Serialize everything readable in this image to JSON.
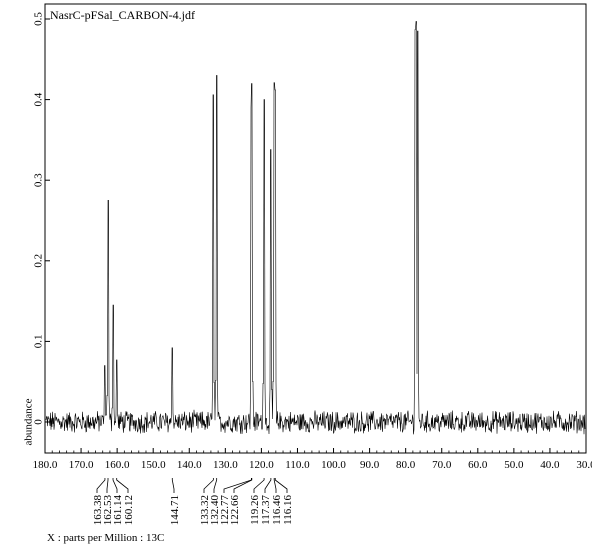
{
  "chart_data": {
    "type": "line",
    "title": "NasrC-pFSal_CARBON-4.jdf",
    "xlabel": "X : parts per Million : 13C",
    "ylabel": "abundance",
    "x_reversed": true,
    "xlim": [
      180.0,
      30.0
    ],
    "ylim": [
      -0.03,
      0.5
    ],
    "x_ticks": [
      180.0,
      170.0,
      160.0,
      150.0,
      140.0,
      130.0,
      120.0,
      110.0,
      100.0,
      90.0,
      80.0,
      70.0,
      60.0,
      50.0,
      40.0,
      30.0
    ],
    "x_tick_labels": [
      "180.0",
      "170.0",
      "160.0",
      "150.0",
      "140.0",
      "130.0",
      "120.0",
      "110.0",
      "100.0",
      "90.0",
      "80.0",
      "70.0",
      "60.0",
      "50.0",
      "40.0",
      "30.0"
    ],
    "y_ticks": [
      0,
      0.1,
      0.2,
      0.3,
      0.4,
      0.5
    ],
    "y_tick_labels": [
      "0",
      "0.1",
      "0.2",
      "0.3",
      "0.4",
      "0.5"
    ],
    "grid": false,
    "peaks": [
      {
        "x": 163.38,
        "y": 0.07
      },
      {
        "x": 162.53,
        "y": 0.275
      },
      {
        "x": 161.14,
        "y": 0.145
      },
      {
        "x": 160.12,
        "y": 0.077
      },
      {
        "x": 144.71,
        "y": 0.092
      },
      {
        "x": 133.32,
        "y": 0.406
      },
      {
        "x": 132.4,
        "y": 0.43
      },
      {
        "x": 122.77,
        "y": 0.39
      },
      {
        "x": 122.66,
        "y": 0.42
      },
      {
        "x": 119.26,
        "y": 0.4
      },
      {
        "x": 117.37,
        "y": 0.338
      },
      {
        "x": 116.46,
        "y": 0.421
      },
      {
        "x": 116.16,
        "y": 0.412
      },
      {
        "x": 77.3,
        "y": 0.487
      },
      {
        "x": 77.0,
        "y": 0.497
      },
      {
        "x": 76.7,
        "y": 0.485
      }
    ],
    "peak_labels": [
      "163.38",
      "162.53",
      "161.14",
      "160.12",
      "144.71",
      "133.32",
      "132.40",
      "122.77",
      "122.66",
      "119.26",
      "117.37",
      "116.46",
      "116.16"
    ],
    "noise_amplitude": 0.012
  }
}
